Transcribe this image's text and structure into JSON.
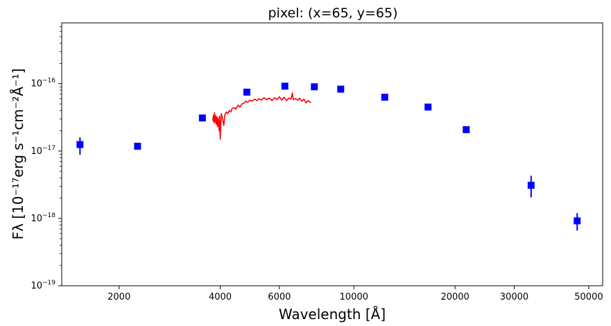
{
  "chart_data": {
    "type": "scatter",
    "title": "pixel: (x=65, y=65)",
    "xlabel": "Wavelength [Å]",
    "ylabel": "Fλ [10⁻¹⁷erg s⁻¹cm⁻²Å⁻¹]",
    "xscale": "log",
    "yscale": "log",
    "xlim": [
      1350,
      55000
    ],
    "ylim": [
      1e-19,
      8e-16
    ],
    "xticks": [
      {
        "value": 2000,
        "label": "2000"
      },
      {
        "value": 4000,
        "label": "4000"
      },
      {
        "value": 6000,
        "label": "6000"
      },
      {
        "value": 10000,
        "label": "10000"
      },
      {
        "value": 20000,
        "label": "20000"
      },
      {
        "value": 30000,
        "label": "30000"
      },
      {
        "value": 50000,
        "label": "50000"
      }
    ],
    "yticks": [
      {
        "value": 1e-19,
        "base": "10",
        "exp": "−19"
      },
      {
        "value": 1e-18,
        "base": "10",
        "exp": "−18"
      },
      {
        "value": 1e-17,
        "base": "10",
        "exp": "−17"
      },
      {
        "value": 1e-16,
        "base": "10",
        "exp": "−16"
      }
    ],
    "grid": false,
    "legend": "none",
    "series": [
      {
        "kind": "points",
        "color": "#0000ff",
        "marker": "square",
        "points": [
          {
            "x": 1530,
            "y": 1.25e-17,
            "ylo": 8.8e-18,
            "yhi": 1.6e-17
          },
          {
            "x": 2270,
            "y": 1.18e-17,
            "ylo": 1.1e-17,
            "yhi": 1.26e-17
          },
          {
            "x": 3540,
            "y": 3.1e-17,
            "ylo": 2.95e-17,
            "yhi": 3.25e-17
          },
          {
            "x": 4800,
            "y": 7.5e-17,
            "ylo": 7.2e-17,
            "yhi": 7.8e-17
          },
          {
            "x": 6230,
            "y": 9.2e-17,
            "ylo": 8.9e-17,
            "yhi": 9.5e-17
          },
          {
            "x": 7625,
            "y": 9e-17,
            "ylo": 8.7e-17,
            "yhi": 9.3e-17
          },
          {
            "x": 9135,
            "y": 8.3e-17,
            "ylo": 8e-17,
            "yhi": 8.6e-17
          },
          {
            "x": 12350,
            "y": 6.3e-17,
            "ylo": 6.05e-17,
            "yhi": 6.55e-17
          },
          {
            "x": 16620,
            "y": 4.5e-17,
            "ylo": 4.3e-17,
            "yhi": 4.7e-17
          },
          {
            "x": 21590,
            "y": 2.08e-17,
            "ylo": 1.98e-17,
            "yhi": 2.18e-17
          },
          {
            "x": 33680,
            "y": 3.1e-18,
            "ylo": 2.05e-18,
            "yhi": 4.3e-18
          },
          {
            "x": 46180,
            "y": 9.2e-19,
            "ylo": 6.6e-19,
            "yhi": 1.2e-18
          }
        ]
      },
      {
        "kind": "line",
        "color": "#ff0000",
        "points": [
          [
            3800,
            2.8e-17
          ],
          [
            3820,
            3.4e-17
          ],
          [
            3835,
            2.6e-17
          ],
          [
            3850,
            3.7e-17
          ],
          [
            3865,
            2.7e-17
          ],
          [
            3880,
            3.3e-17
          ],
          [
            3895,
            2.5e-17
          ],
          [
            3910,
            3.2e-17
          ],
          [
            3925,
            2.3e-17
          ],
          [
            3940,
            3.1e-17
          ],
          [
            3955,
            2.6e-17
          ],
          [
            3970,
            2e-17
          ],
          [
            3985,
            3.3e-17
          ],
          [
            4000,
            1.5e-17
          ],
          [
            4015,
            2.3e-17
          ],
          [
            4030,
            3.6e-17
          ],
          [
            4060,
            3.1e-17
          ],
          [
            4100,
            2.4e-17
          ],
          [
            4130,
            3.5e-17
          ],
          [
            4170,
            3.8e-17
          ],
          [
            4210,
            3.6e-17
          ],
          [
            4260,
            4e-17
          ],
          [
            4300,
            3.8e-17
          ],
          [
            4340,
            4.3e-17
          ],
          [
            4400,
            4.4e-17
          ],
          [
            4460,
            4.2e-17
          ],
          [
            4520,
            4.8e-17
          ],
          [
            4580,
            4.5e-17
          ],
          [
            4640,
            5e-17
          ],
          [
            4700,
            5.1e-17
          ],
          [
            4760,
            5.5e-17
          ],
          [
            4830,
            5.3e-17
          ],
          [
            4900,
            5.7e-17
          ],
          [
            4980,
            5.5e-17
          ],
          [
            5060,
            5.9e-17
          ],
          [
            5140,
            5.6e-17
          ],
          [
            5220,
            6e-17
          ],
          [
            5300,
            5.7e-17
          ],
          [
            5400,
            6.2e-17
          ],
          [
            5500,
            5.8e-17
          ],
          [
            5600,
            6.1e-17
          ],
          [
            5700,
            5.6e-17
          ],
          [
            5800,
            6.2e-17
          ],
          [
            5900,
            5.8e-17
          ],
          [
            6000,
            6.4e-17
          ],
          [
            6100,
            5.7e-17
          ],
          [
            6200,
            6.3e-17
          ],
          [
            6300,
            5.6e-17
          ],
          [
            6400,
            6.1e-17
          ],
          [
            6500,
            5.9e-17
          ],
          [
            6560,
            7.3e-17
          ],
          [
            6600,
            5.8e-17
          ],
          [
            6700,
            6e-17
          ],
          [
            6800,
            5.7e-17
          ],
          [
            6900,
            6.1e-17
          ],
          [
            7000,
            5.5e-17
          ],
          [
            7100,
            5.9e-17
          ],
          [
            7200,
            5.2e-17
          ],
          [
            7300,
            5.6e-17
          ],
          [
            7400,
            5.3e-17
          ],
          [
            7450,
            5.4e-17
          ]
        ]
      }
    ]
  }
}
